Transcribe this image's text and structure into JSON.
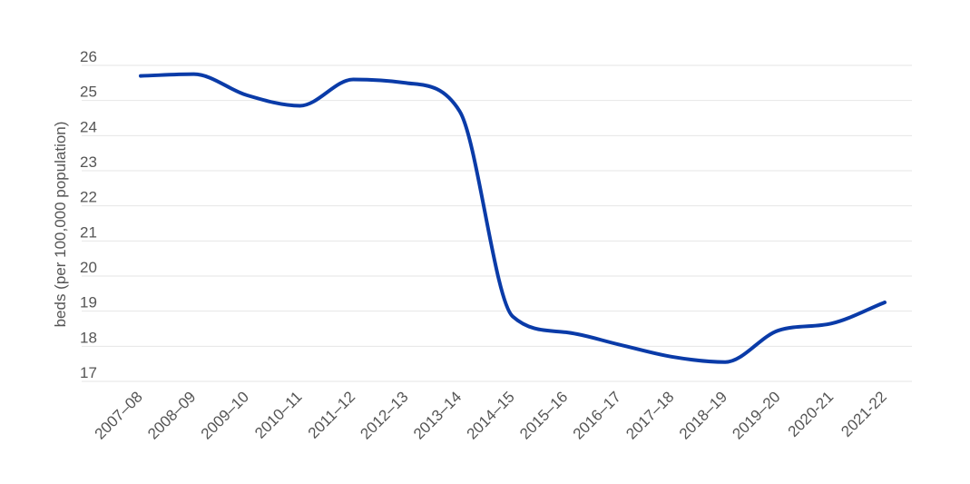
{
  "chart_data": {
    "type": "line",
    "title": "",
    "xlabel": "",
    "ylabel": "beds (per 100,000 population)",
    "categories": [
      "2007–08",
      "2008–09",
      "2009–10",
      "2010–11",
      "2011–12",
      "2012–13",
      "2013–14",
      "2014–15",
      "2015–16",
      "2016–17",
      "2017–18",
      "2018–19",
      "2019–20",
      "2020-21",
      "2021-22"
    ],
    "series": [
      {
        "values": [
          25.7,
          25.75,
          25.15,
          24.85,
          25.6,
          25.5,
          24.7,
          18.85,
          18.4,
          18.05,
          17.7,
          17.55,
          18.45,
          18.65,
          19.25
        ]
      }
    ],
    "ylim": [
      17,
      26
    ],
    "yticks": [
      17,
      18,
      19,
      20,
      21,
      22,
      23,
      24,
      25,
      26
    ],
    "grid": true,
    "legend": "none",
    "colors": {
      "line": "#0a3ba8",
      "grid": "#e6e6e6",
      "text": "#555555"
    }
  }
}
